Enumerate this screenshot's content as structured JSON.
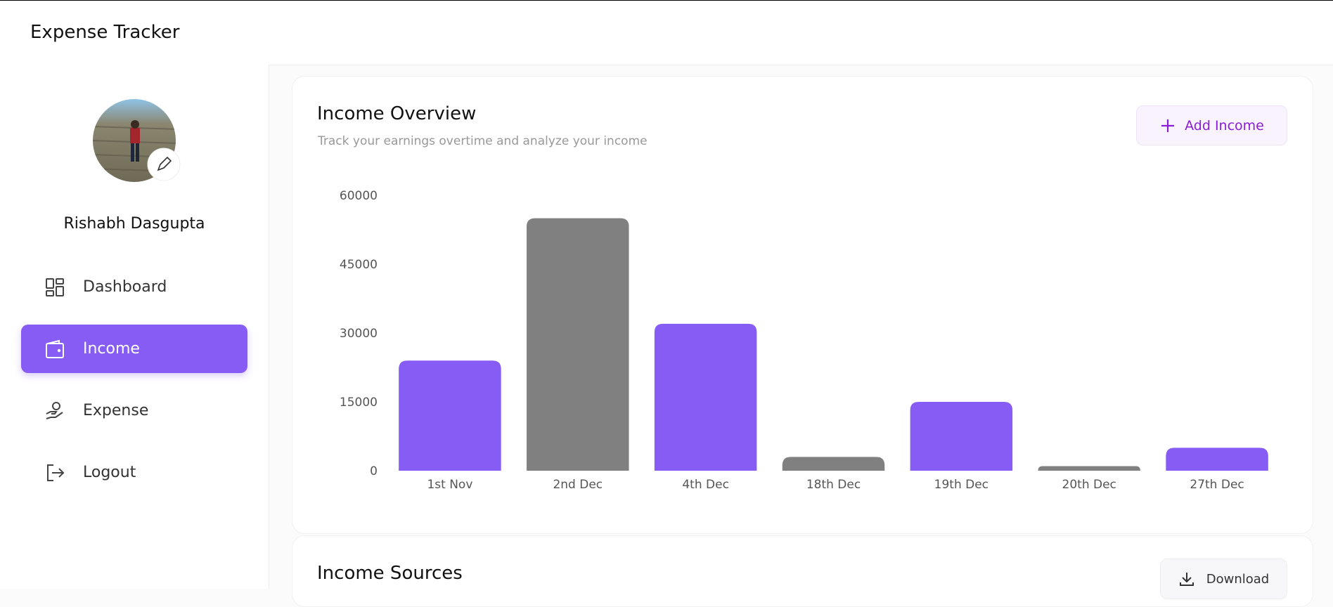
{
  "header": {
    "title": "Expense Tracker"
  },
  "sidebar": {
    "user_name": "Rishabh Dasgupta",
    "menu": [
      "Dashboard",
      "Income",
      "Expense",
      "Logout"
    ]
  },
  "overview": {
    "title": "Income Overview",
    "subtitle": "Track your earnings overtime and analyze your income",
    "button": "Add Income"
  },
  "sources": {
    "title": "Income Sources",
    "button": "Download"
  },
  "chart_data": {
    "type": "bar",
    "categories": [
      "1st Nov",
      "2nd Dec",
      "4th Dec",
      "18th Dec",
      "19th Dec",
      "20th Dec",
      "27th Dec"
    ],
    "values": [
      24000,
      55000,
      32000,
      3000,
      15000,
      1000,
      5000
    ],
    "colors": [
      "#875cf5",
      "#808080",
      "#875cf5",
      "#808080",
      "#875cf5",
      "#808080",
      "#875cf5"
    ],
    "ylim": [
      0,
      60000
    ],
    "yticks": [
      0,
      15000,
      30000,
      45000,
      60000
    ],
    "grid": false
  }
}
